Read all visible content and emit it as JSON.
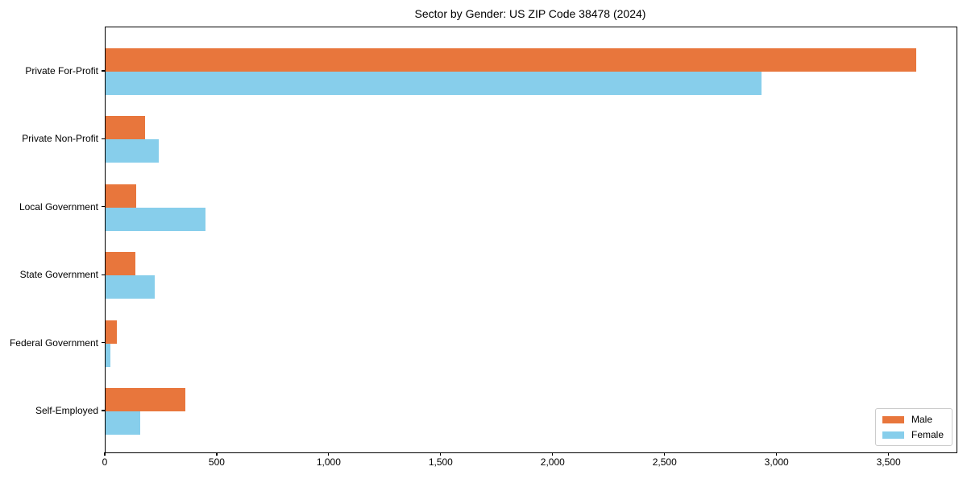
{
  "figure": {
    "title": "Sector by Gender: US ZIP Code 38478 (2024)"
  },
  "chart_data": {
    "type": "bar",
    "orientation": "horizontal",
    "title": "Sector by Gender: US ZIP Code 38478 (2024)",
    "categories": [
      "Private For-Profit",
      "Private Non-Profit",
      "Local Government",
      "State Government",
      "Federal Government",
      "Self-Employed"
    ],
    "series": [
      {
        "name": "Male",
        "color": "#E8763C",
        "values": [
          3620,
          178,
          138,
          132,
          50,
          355
        ]
      },
      {
        "name": "Female",
        "color": "#87CEEB",
        "values": [
          2930,
          238,
          448,
          220,
          20,
          155
        ]
      }
    ],
    "xlabel": "",
    "ylabel": "",
    "xlim": [
      0,
      3800
    ],
    "xticks": {
      "values": [
        0,
        500,
        1000,
        1500,
        2000,
        2500,
        3000,
        3500
      ],
      "labels": [
        "0",
        "500",
        "1,000",
        "1,500",
        "2,000",
        "2,500",
        "3,000",
        "3,500"
      ]
    },
    "legend": {
      "position": "lower right",
      "entries": [
        "Male",
        "Female"
      ]
    },
    "grid": false
  }
}
